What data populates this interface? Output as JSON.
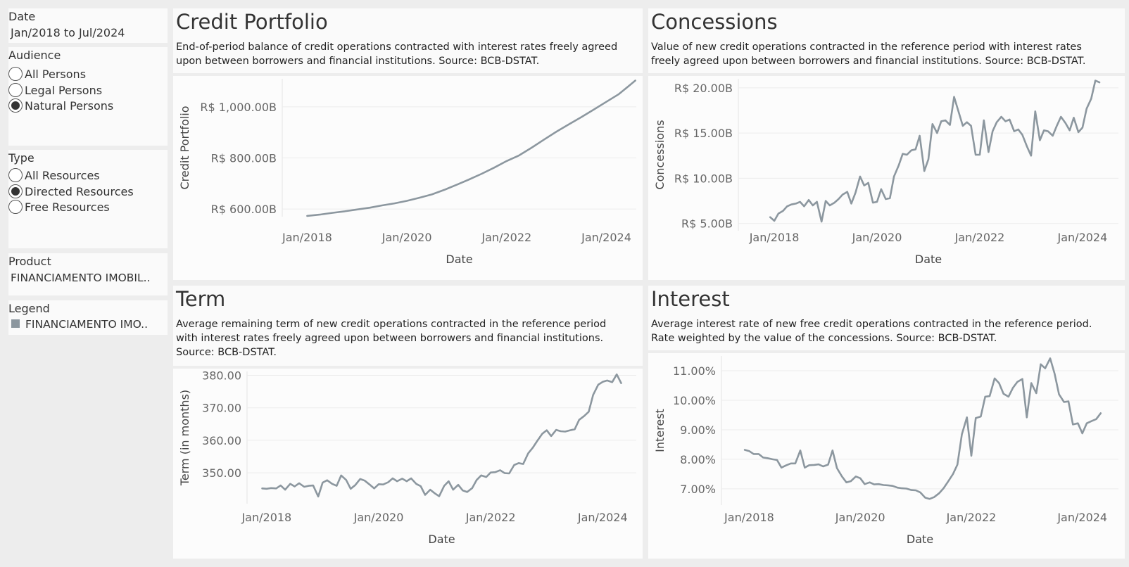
{
  "filters": {
    "date": {
      "title": "Date",
      "value": "Jan/2018 to Jul/2024"
    },
    "audience": {
      "title": "Audience",
      "options": [
        "All Persons",
        "Legal Persons",
        "Natural Persons"
      ],
      "selected": 2
    },
    "type": {
      "title": "Type",
      "options": [
        "All Resources",
        "Directed Resources",
        "Free Resources"
      ],
      "selected": 1
    },
    "product": {
      "title": "Product",
      "value": "FINANCIAMENTO IMOBIL.."
    },
    "legend": {
      "title": "Legend",
      "item": "FINANCIAMENTO IMO..",
      "color": "#8c979f"
    }
  },
  "charts": {
    "credit": {
      "title": "Credit Portfolio",
      "description": "End-of-period balance of credit operations contracted with interest rates freely agreed upon between borrowers and financial institutions. Source: BCB-DSTAT."
    },
    "concessions": {
      "title": "Concessions",
      "description": "Value of new credit operations contracted in the reference period with interest rates freely agreed upon between borrowers and financial institutions. Source: BCB-DSTAT."
    },
    "term": {
      "title": "Term",
      "description": "Average remaining term of new credit operations contracted in the reference period with interest rates freely agreed upon between borrowers and financial institutions. Source: BCB-DSTAT."
    },
    "interest": {
      "title": "Interest",
      "description": "Average interest rate of new free credit operations contracted in the reference period. Rate weighted by the value of the concessions. Source: BCB-DSTAT."
    }
  },
  "chart_data": [
    {
      "id": "credit",
      "type": "line",
      "line_color": "#8c979f",
      "xlabel": "Date",
      "ylabel": "Credit Portfolio",
      "x_ticks": [
        "Jan/2018",
        "Jan/2020",
        "Jan/2022",
        "Jan/2024"
      ],
      "y_ticks": [
        600,
        800,
        1000
      ],
      "y_tick_labels": [
        "R$ 600.00B",
        "R$ 800.00B",
        "R$ 1,000.00B"
      ],
      "x_range": [
        2017.5,
        2024.6
      ],
      "ylim": [
        570,
        1110
      ],
      "points": [
        [
          2018.0,
          573
        ],
        [
          2018.25,
          578
        ],
        [
          2018.5,
          585
        ],
        [
          2018.75,
          591
        ],
        [
          2019.0,
          598
        ],
        [
          2019.25,
          605
        ],
        [
          2019.5,
          614
        ],
        [
          2019.75,
          622
        ],
        [
          2020.0,
          632
        ],
        [
          2020.25,
          644
        ],
        [
          2020.5,
          657
        ],
        [
          2020.75,
          675
        ],
        [
          2021.0,
          695
        ],
        [
          2021.25,
          716
        ],
        [
          2021.5,
          738
        ],
        [
          2021.75,
          762
        ],
        [
          2022.0,
          788
        ],
        [
          2022.25,
          810
        ],
        [
          2022.5,
          840
        ],
        [
          2022.75,
          872
        ],
        [
          2023.0,
          903
        ],
        [
          2023.25,
          932
        ],
        [
          2023.5,
          960
        ],
        [
          2023.75,
          990
        ],
        [
          2024.0,
          1020
        ],
        [
          2024.25,
          1050
        ],
        [
          2024.5,
          1090
        ],
        [
          2024.58,
          1103
        ]
      ]
    },
    {
      "id": "concessions",
      "type": "line",
      "line_color": "#8c979f",
      "xlabel": "Date",
      "ylabel": "Concessions",
      "x_ticks": [
        "Jan/2018",
        "Jan/2020",
        "Jan/2022",
        "Jan/2024"
      ],
      "y_ticks": [
        5,
        10,
        15,
        20
      ],
      "y_tick_labels": [
        "R$ 5.00B",
        "R$ 10.00B",
        "R$ 15.00B",
        "R$ 20.00B"
      ],
      "x_range": [
        2017.3,
        2024.7
      ],
      "ylim": [
        4.2,
        21.0
      ],
      "points": [
        [
          2017.92,
          5.7
        ],
        [
          2018.0,
          5.3
        ],
        [
          2018.08,
          6.1
        ],
        [
          2018.17,
          6.4
        ],
        [
          2018.25,
          6.9
        ],
        [
          2018.33,
          7.1
        ],
        [
          2018.42,
          7.2
        ],
        [
          2018.5,
          7.4
        ],
        [
          2018.58,
          6.9
        ],
        [
          2018.67,
          7.6
        ],
        [
          2018.75,
          7.0
        ],
        [
          2018.83,
          7.4
        ],
        [
          2018.92,
          5.2
        ],
        [
          2019.0,
          7.5
        ],
        [
          2019.08,
          7.0
        ],
        [
          2019.17,
          7.3
        ],
        [
          2019.25,
          7.7
        ],
        [
          2019.33,
          8.2
        ],
        [
          2019.42,
          8.5
        ],
        [
          2019.5,
          7.2
        ],
        [
          2019.58,
          8.4
        ],
        [
          2019.67,
          10.2
        ],
        [
          2019.75,
          9.2
        ],
        [
          2019.83,
          9.5
        ],
        [
          2019.92,
          7.3
        ],
        [
          2020.0,
          7.4
        ],
        [
          2020.08,
          8.8
        ],
        [
          2020.17,
          7.7
        ],
        [
          2020.25,
          7.8
        ],
        [
          2020.33,
          10.2
        ],
        [
          2020.42,
          11.4
        ],
        [
          2020.5,
          12.7
        ],
        [
          2020.58,
          12.6
        ],
        [
          2020.67,
          13.1
        ],
        [
          2020.75,
          13.2
        ],
        [
          2020.83,
          14.7
        ],
        [
          2020.92,
          10.8
        ],
        [
          2021.0,
          12.1
        ],
        [
          2021.08,
          16.0
        ],
        [
          2021.17,
          15.0
        ],
        [
          2021.25,
          16.3
        ],
        [
          2021.33,
          16.4
        ],
        [
          2021.42,
          15.9
        ],
        [
          2021.5,
          19.0
        ],
        [
          2021.58,
          17.5
        ],
        [
          2021.67,
          15.8
        ],
        [
          2021.75,
          16.2
        ],
        [
          2021.83,
          15.8
        ],
        [
          2021.92,
          12.6
        ],
        [
          2022.0,
          12.6
        ],
        [
          2022.08,
          16.4
        ],
        [
          2022.17,
          12.9
        ],
        [
          2022.25,
          15.2
        ],
        [
          2022.33,
          16.2
        ],
        [
          2022.42,
          16.8
        ],
        [
          2022.5,
          16.3
        ],
        [
          2022.58,
          16.5
        ],
        [
          2022.67,
          15.2
        ],
        [
          2022.75,
          15.4
        ],
        [
          2022.83,
          14.8
        ],
        [
          2022.92,
          13.5
        ],
        [
          2023.0,
          12.5
        ],
        [
          2023.08,
          17.4
        ],
        [
          2023.17,
          14.2
        ],
        [
          2023.25,
          15.3
        ],
        [
          2023.33,
          15.2
        ],
        [
          2023.42,
          14.7
        ],
        [
          2023.5,
          15.8
        ],
        [
          2023.58,
          16.8
        ],
        [
          2023.67,
          16.1
        ],
        [
          2023.75,
          15.3
        ],
        [
          2023.83,
          16.7
        ],
        [
          2023.92,
          15.1
        ],
        [
          2024.0,
          15.6
        ],
        [
          2024.08,
          17.7
        ],
        [
          2024.17,
          18.8
        ],
        [
          2024.25,
          20.8
        ],
        [
          2024.33,
          20.6
        ]
      ]
    },
    {
      "id": "term",
      "type": "line",
      "line_color": "#8c979f",
      "xlabel": "Date",
      "ylabel": "Term (in months)",
      "x_ticks": [
        "Jan/2018",
        "Jan/2020",
        "Jan/2022",
        "Jan/2024"
      ],
      "y_ticks": [
        350,
        360,
        370,
        380
      ],
      "y_tick_labels": [
        "350.00",
        "360.00",
        "370.00",
        "380.00"
      ],
      "x_range": [
        2017.65,
        2024.6
      ],
      "ylim": [
        340.5,
        381.2
      ],
      "points": [
        [
          2017.92,
          345.2
        ],
        [
          2018.0,
          345.1
        ],
        [
          2018.08,
          345.3
        ],
        [
          2018.17,
          345.2
        ],
        [
          2018.25,
          346.1
        ],
        [
          2018.33,
          344.8
        ],
        [
          2018.42,
          346.6
        ],
        [
          2018.5,
          345.8
        ],
        [
          2018.58,
          346.8
        ],
        [
          2018.67,
          345.7
        ],
        [
          2018.75,
          346.0
        ],
        [
          2018.83,
          346.1
        ],
        [
          2018.92,
          342.7
        ],
        [
          2019.0,
          347.0
        ],
        [
          2019.08,
          347.7
        ],
        [
          2019.17,
          346.6
        ],
        [
          2019.25,
          346.0
        ],
        [
          2019.33,
          349.2
        ],
        [
          2019.42,
          347.8
        ],
        [
          2019.5,
          345.1
        ],
        [
          2019.58,
          346.2
        ],
        [
          2019.67,
          348.1
        ],
        [
          2019.75,
          347.6
        ],
        [
          2019.83,
          346.5
        ],
        [
          2019.92,
          345.2
        ],
        [
          2020.0,
          346.5
        ],
        [
          2020.08,
          346.4
        ],
        [
          2020.17,
          347.1
        ],
        [
          2020.25,
          348.3
        ],
        [
          2020.33,
          347.4
        ],
        [
          2020.42,
          348.2
        ],
        [
          2020.5,
          347.4
        ],
        [
          2020.58,
          348.3
        ],
        [
          2020.67,
          346.6
        ],
        [
          2020.75,
          345.9
        ],
        [
          2020.83,
          343.2
        ],
        [
          2020.92,
          344.8
        ],
        [
          2021.0,
          343.7
        ],
        [
          2021.08,
          342.8
        ],
        [
          2021.17,
          346.0
        ],
        [
          2021.25,
          347.4
        ],
        [
          2021.33,
          344.8
        ],
        [
          2021.42,
          346.3
        ],
        [
          2021.5,
          344.6
        ],
        [
          2021.58,
          344.1
        ],
        [
          2021.67,
          345.3
        ],
        [
          2021.75,
          347.8
        ],
        [
          2021.83,
          349.2
        ],
        [
          2021.92,
          348.7
        ],
        [
          2022.0,
          350.1
        ],
        [
          2022.08,
          350.2
        ],
        [
          2022.17,
          350.8
        ],
        [
          2022.25,
          349.9
        ],
        [
          2022.33,
          349.8
        ],
        [
          2022.42,
          352.4
        ],
        [
          2022.5,
          353.0
        ],
        [
          2022.58,
          352.7
        ],
        [
          2022.67,
          356.0
        ],
        [
          2022.75,
          357.7
        ],
        [
          2022.83,
          359.8
        ],
        [
          2022.92,
          362.0
        ],
        [
          2023.0,
          363.1
        ],
        [
          2023.08,
          361.3
        ],
        [
          2023.17,
          363.2
        ],
        [
          2023.25,
          362.8
        ],
        [
          2023.33,
          362.7
        ],
        [
          2023.42,
          363.1
        ],
        [
          2023.5,
          363.4
        ],
        [
          2023.58,
          366.3
        ],
        [
          2023.67,
          367.5
        ],
        [
          2023.75,
          368.8
        ],
        [
          2023.83,
          374.0
        ],
        [
          2023.92,
          377.1
        ],
        [
          2024.0,
          378.0
        ],
        [
          2024.08,
          378.4
        ],
        [
          2024.17,
          377.9
        ],
        [
          2024.25,
          380.3
        ],
        [
          2024.33,
          377.6
        ]
      ]
    },
    {
      "id": "interest",
      "type": "line",
      "line_color": "#8c979f",
      "xlabel": "Date",
      "ylabel": "Interest",
      "x_ticks": [
        "Jan/2018",
        "Jan/2020",
        "Jan/2022",
        "Jan/2024"
      ],
      "y_ticks": [
        7,
        8,
        9,
        10,
        11
      ],
      "y_tick_labels": [
        "7.00%",
        "8.00%",
        "9.00%",
        "10.00%",
        "11.00%"
      ],
      "x_range": [
        2017.5,
        2024.65
      ],
      "ylim": [
        6.45,
        11.5
      ],
      "points": [
        [
          2017.92,
          8.32
        ],
        [
          2018.0,
          8.28
        ],
        [
          2018.08,
          8.18
        ],
        [
          2018.17,
          8.18
        ],
        [
          2018.25,
          8.06
        ],
        [
          2018.33,
          8.04
        ],
        [
          2018.42,
          8.0
        ],
        [
          2018.5,
          7.98
        ],
        [
          2018.58,
          7.72
        ],
        [
          2018.67,
          7.8
        ],
        [
          2018.75,
          7.86
        ],
        [
          2018.83,
          7.86
        ],
        [
          2018.92,
          8.3
        ],
        [
          2019.0,
          7.72
        ],
        [
          2019.08,
          7.8
        ],
        [
          2019.17,
          7.81
        ],
        [
          2019.25,
          7.83
        ],
        [
          2019.33,
          7.76
        ],
        [
          2019.42,
          7.82
        ],
        [
          2019.5,
          8.3
        ],
        [
          2019.58,
          7.7
        ],
        [
          2019.67,
          7.42
        ],
        [
          2019.75,
          7.22
        ],
        [
          2019.83,
          7.26
        ],
        [
          2019.92,
          7.42
        ],
        [
          2020.0,
          7.36
        ],
        [
          2020.08,
          7.16
        ],
        [
          2020.17,
          7.22
        ],
        [
          2020.25,
          7.15
        ],
        [
          2020.33,
          7.16
        ],
        [
          2020.42,
          7.13
        ],
        [
          2020.5,
          7.12
        ],
        [
          2020.58,
          7.1
        ],
        [
          2020.67,
          7.04
        ],
        [
          2020.75,
          7.02
        ],
        [
          2020.83,
          7.01
        ],
        [
          2020.92,
          6.96
        ],
        [
          2021.0,
          6.95
        ],
        [
          2021.08,
          6.88
        ],
        [
          2021.17,
          6.7
        ],
        [
          2021.25,
          6.66
        ],
        [
          2021.33,
          6.72
        ],
        [
          2021.42,
          6.85
        ],
        [
          2021.5,
          7.02
        ],
        [
          2021.58,
          7.24
        ],
        [
          2021.67,
          7.5
        ],
        [
          2021.75,
          7.82
        ],
        [
          2021.83,
          8.85
        ],
        [
          2021.92,
          9.42
        ],
        [
          2022.0,
          8.12
        ],
        [
          2022.08,
          9.4
        ],
        [
          2022.17,
          9.45
        ],
        [
          2022.25,
          10.12
        ],
        [
          2022.33,
          10.14
        ],
        [
          2022.42,
          10.74
        ],
        [
          2022.5,
          10.58
        ],
        [
          2022.58,
          10.22
        ],
        [
          2022.67,
          10.12
        ],
        [
          2022.75,
          10.42
        ],
        [
          2022.83,
          10.62
        ],
        [
          2022.92,
          10.72
        ],
        [
          2023.0,
          9.42
        ],
        [
          2023.08,
          10.58
        ],
        [
          2023.17,
          10.24
        ],
        [
          2023.25,
          11.22
        ],
        [
          2023.33,
          11.08
        ],
        [
          2023.42,
          11.42
        ],
        [
          2023.5,
          10.9
        ],
        [
          2023.58,
          10.2
        ],
        [
          2023.67,
          9.94
        ],
        [
          2023.75,
          9.96
        ],
        [
          2023.83,
          9.18
        ],
        [
          2023.92,
          9.22
        ],
        [
          2024.0,
          8.88
        ],
        [
          2024.08,
          9.22
        ],
        [
          2024.17,
          9.3
        ],
        [
          2024.25,
          9.36
        ],
        [
          2024.33,
          9.56
        ]
      ]
    }
  ]
}
